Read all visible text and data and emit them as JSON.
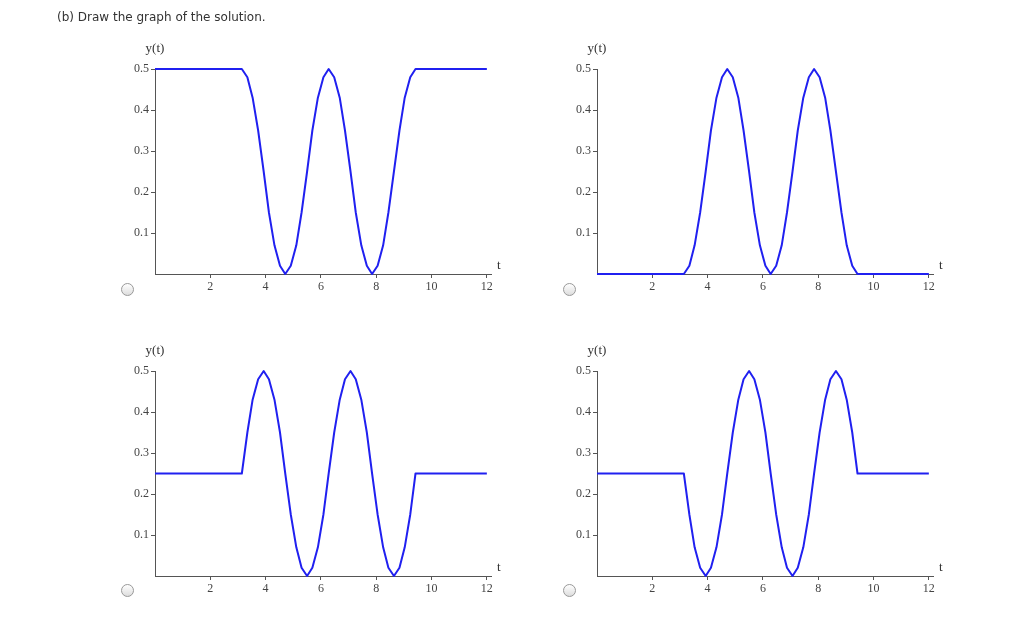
{
  "chart_data": [
    {
      "type": "line",
      "title": "(b) Draw the graph of the solution.",
      "xlabel": "t",
      "ylabel": "y(t)",
      "xlim": [
        0,
        12.15
      ],
      "ylim": [
        0,
        0.5
      ],
      "xticks": [
        2,
        4,
        6,
        8,
        10,
        12
      ],
      "yticks": [
        0.1,
        0.2,
        0.3,
        0.4,
        0.5
      ],
      "grid": false,
      "legend": false,
      "x": [
        0,
        3.14,
        3.34,
        3.53,
        3.73,
        3.93,
        4.12,
        4.32,
        4.52,
        4.71,
        4.91,
        5.11,
        5.3,
        5.5,
        5.69,
        5.89,
        6.09,
        6.28,
        6.48,
        6.68,
        6.87,
        7.07,
        7.26,
        7.46,
        7.66,
        7.85,
        8.05,
        8.25,
        8.44,
        8.64,
        8.84,
        9.03,
        9.23,
        9.42,
        12
      ],
      "series": [
        {
          "color": "#2020f0",
          "values": [
            0.5,
            0.5,
            0.48,
            0.43,
            0.35,
            0.25,
            0.15,
            0.07,
            0.02,
            0,
            0.02,
            0.07,
            0.15,
            0.25,
            0.35,
            0.43,
            0.48,
            0.5,
            0.48,
            0.43,
            0.35,
            0.25,
            0.15,
            0.07,
            0.02,
            0,
            0.02,
            0.07,
            0.15,
            0.25,
            0.35,
            0.43,
            0.48,
            0.5,
            0.5
          ]
        }
      ]
    },
    {
      "type": "line",
      "xlabel": "t",
      "ylabel": "y(t)",
      "xlim": [
        0,
        12.15
      ],
      "ylim": [
        0,
        0.5
      ],
      "xticks": [
        2,
        4,
        6,
        8,
        10,
        12
      ],
      "yticks": [
        0.1,
        0.2,
        0.3,
        0.4,
        0.5
      ],
      "grid": false,
      "legend": false,
      "x": [
        0,
        3.14,
        3.34,
        3.53,
        3.73,
        3.93,
        4.12,
        4.32,
        4.52,
        4.71,
        4.91,
        5.11,
        5.3,
        5.5,
        5.69,
        5.89,
        6.09,
        6.28,
        6.48,
        6.68,
        6.87,
        7.07,
        7.26,
        7.46,
        7.66,
        7.85,
        8.05,
        8.25,
        8.44,
        8.64,
        8.84,
        9.03,
        9.23,
        9.42,
        12
      ],
      "series": [
        {
          "color": "#2020f0",
          "values": [
            0,
            0,
            0.02,
            0.07,
            0.15,
            0.25,
            0.35,
            0.43,
            0.48,
            0.5,
            0.48,
            0.43,
            0.35,
            0.25,
            0.15,
            0.07,
            0.02,
            0,
            0.02,
            0.07,
            0.15,
            0.25,
            0.35,
            0.43,
            0.48,
            0.5,
            0.48,
            0.43,
            0.35,
            0.25,
            0.15,
            0.07,
            0.02,
            0,
            0
          ]
        }
      ]
    },
    {
      "type": "line",
      "xlabel": "t",
      "ylabel": "y(t)",
      "xlim": [
        0,
        12.15
      ],
      "ylim": [
        0,
        0.5
      ],
      "xticks": [
        2,
        4,
        6,
        8,
        10,
        12
      ],
      "yticks": [
        0.1,
        0.2,
        0.3,
        0.4,
        0.5
      ],
      "grid": false,
      "legend": false,
      "x": [
        0,
        3.14,
        3.34,
        3.53,
        3.73,
        3.93,
        4.12,
        4.32,
        4.52,
        4.71,
        4.91,
        5.11,
        5.3,
        5.5,
        5.69,
        5.89,
        6.09,
        6.28,
        6.48,
        6.68,
        6.87,
        7.07,
        7.26,
        7.46,
        7.66,
        7.85,
        8.05,
        8.25,
        8.44,
        8.64,
        8.84,
        9.03,
        9.23,
        9.42,
        12
      ],
      "series": [
        {
          "color": "#2020f0",
          "values": [
            0.25,
            0.25,
            0.35,
            0.43,
            0.48,
            0.5,
            0.48,
            0.43,
            0.35,
            0.25,
            0.15,
            0.07,
            0.02,
            0,
            0.02,
            0.07,
            0.15,
            0.25,
            0.35,
            0.43,
            0.48,
            0.5,
            0.48,
            0.43,
            0.35,
            0.25,
            0.15,
            0.07,
            0.02,
            0,
            0.02,
            0.07,
            0.15,
            0.25,
            0.25
          ]
        }
      ]
    },
    {
      "type": "line",
      "xlabel": "t",
      "ylabel": "y(t)",
      "xlim": [
        0,
        12.15
      ],
      "ylim": [
        0,
        0.5
      ],
      "xticks": [
        2,
        4,
        6,
        8,
        10,
        12
      ],
      "yticks": [
        0.1,
        0.2,
        0.3,
        0.4,
        0.5
      ],
      "grid": false,
      "legend": false,
      "x": [
        0,
        3.14,
        3.34,
        3.53,
        3.73,
        3.93,
        4.12,
        4.32,
        4.52,
        4.71,
        4.91,
        5.11,
        5.3,
        5.5,
        5.69,
        5.89,
        6.09,
        6.28,
        6.48,
        6.68,
        6.87,
        7.07,
        7.26,
        7.46,
        7.66,
        7.85,
        8.05,
        8.25,
        8.44,
        8.64,
        8.84,
        9.03,
        9.23,
        9.42,
        12
      ],
      "series": [
        {
          "color": "#2020f0",
          "values": [
            0.25,
            0.25,
            0.15,
            0.07,
            0.02,
            0,
            0.02,
            0.07,
            0.15,
            0.25,
            0.35,
            0.43,
            0.48,
            0.5,
            0.48,
            0.43,
            0.35,
            0.25,
            0.15,
            0.07,
            0.02,
            0,
            0.02,
            0.07,
            0.15,
            0.25,
            0.35,
            0.43,
            0.48,
            0.5,
            0.48,
            0.43,
            0.35,
            0.25,
            0.25
          ]
        }
      ]
    }
  ]
}
